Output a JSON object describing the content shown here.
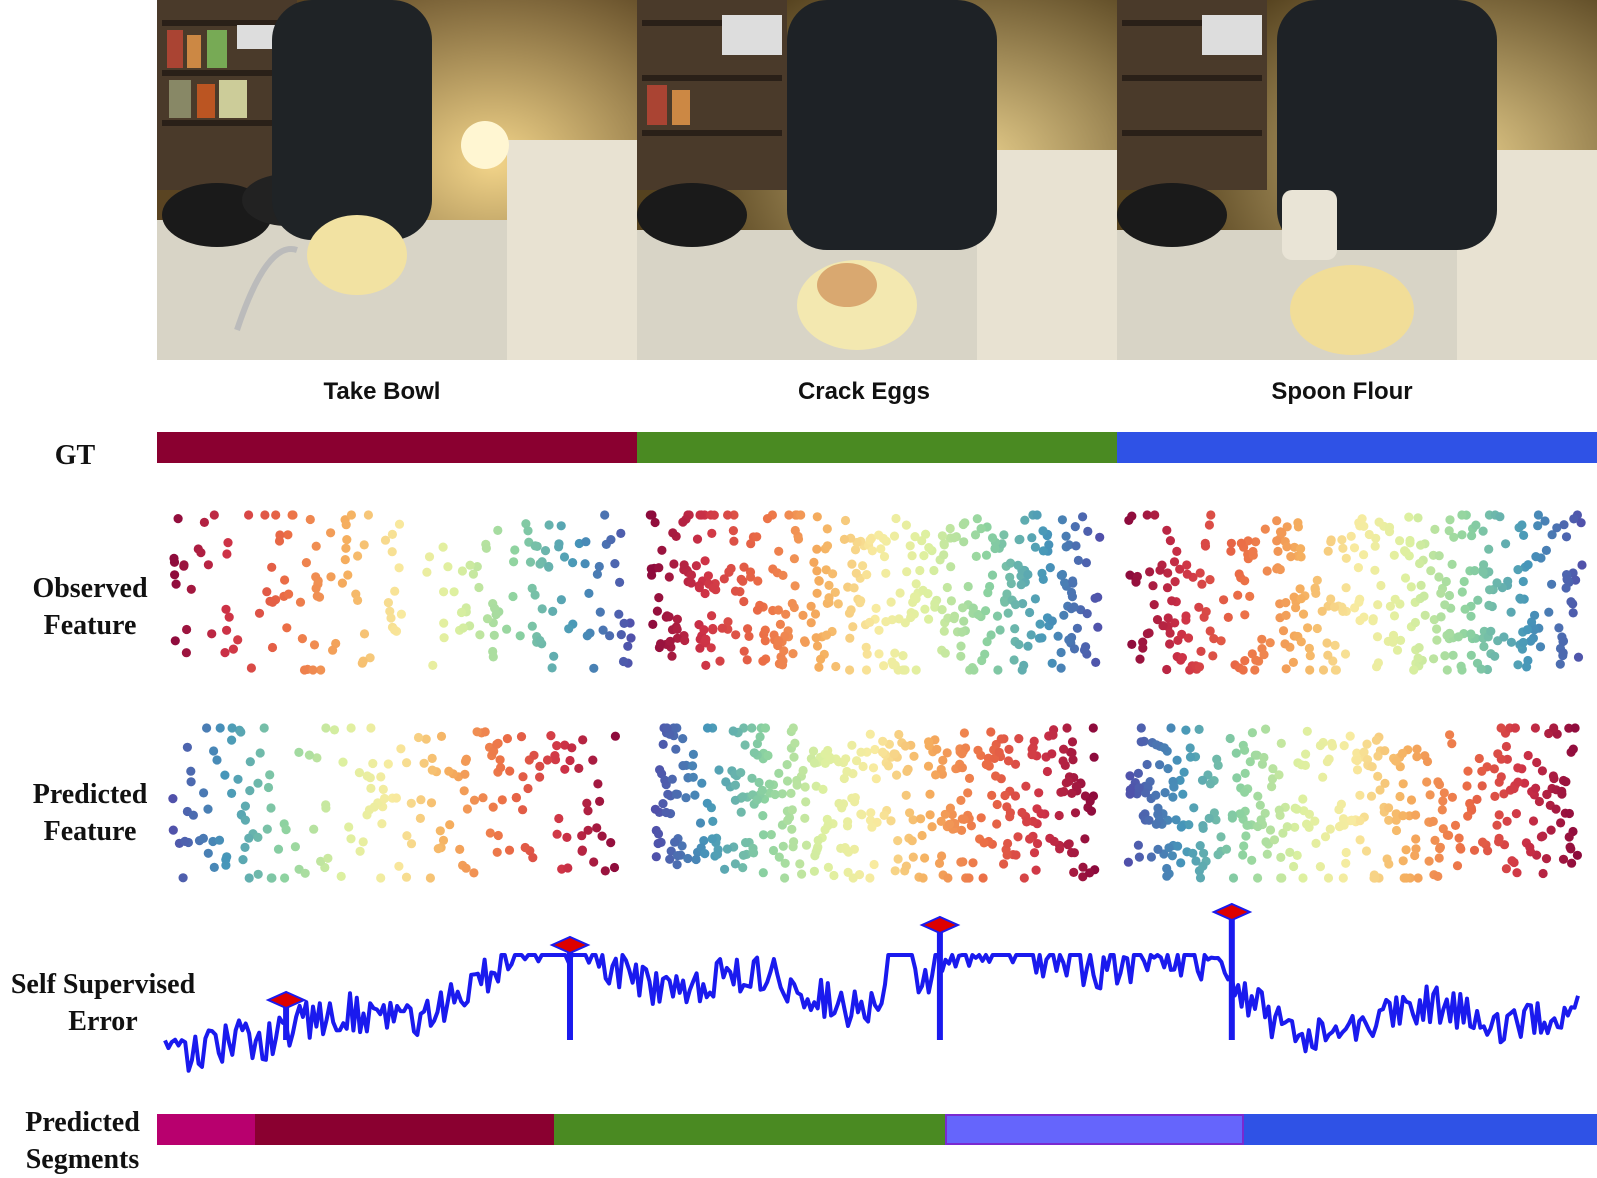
{
  "frames": [
    {
      "action": "Take Bowl"
    },
    {
      "action": "Crack Eggs"
    },
    {
      "action": "Spoon Flour"
    }
  ],
  "rows": {
    "gt": "GT",
    "observed_line1": "Observed",
    "observed_line2": "Feature",
    "predicted_line1": "Predicted",
    "predicted_line2": "Feature",
    "error_line1": "Self Supervised",
    "error_line2": "Error",
    "segments_line1": "Predicted",
    "segments_line2": "Segments"
  },
  "colors": {
    "take_bowl": "#8a0030",
    "crack_eggs": "#4a8a22",
    "spoon_flour": "#2f52e6",
    "extra_seg_pink": "#b8006e",
    "extra_seg_lilac": "#6565fc",
    "error_line": "#1a1aee",
    "peak_marker": "#dd0000"
  },
  "gt_segments": [
    {
      "label": "Take Bowl",
      "start": 0.0,
      "end": 0.333
    },
    {
      "label": "Crack Eggs",
      "start": 0.333,
      "end": 0.667
    },
    {
      "label": "Spoon Flour",
      "start": 0.667,
      "end": 1.0
    }
  ],
  "predicted_segments": [
    {
      "start": 0.0,
      "end": 0.068,
      "color": "#b8006e"
    },
    {
      "start": 0.068,
      "end": 0.276,
      "color": "#8a0030"
    },
    {
      "start": 0.276,
      "end": 0.547,
      "color": "#4a8a22"
    },
    {
      "start": 0.547,
      "end": 0.755,
      "color": "#6565fc"
    },
    {
      "start": 0.755,
      "end": 1.0,
      "color": "#2f52e6"
    }
  ],
  "chart_data": {
    "type": "line",
    "peaks_at": [
      0.068,
      0.276,
      0.547,
      0.755
    ]
  }
}
